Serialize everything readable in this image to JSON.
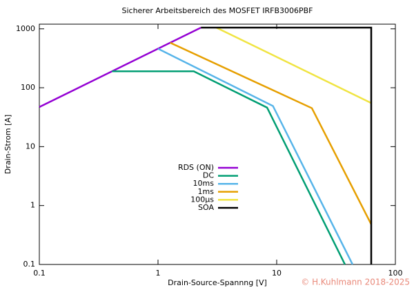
{
  "chart_data": {
    "type": "line",
    "title": "Sicherer Arbeitsbereich des MOSFET IRFB3006PBF",
    "x_label": "Drain-Source-Spannng [V]",
    "y_label": "Drain-Strom [A]",
    "annotation": "© H.Kuhlmann 2018-2025",
    "xscale": "log",
    "yscale": "log",
    "xlim": [
      0.1,
      100
    ],
    "ylim": [
      0.1,
      1200
    ],
    "xticks": [
      0.1,
      1,
      10,
      100
    ],
    "yticks": [
      0.1,
      1,
      10,
      100,
      1000
    ],
    "legend": "center",
    "series": [
      {
        "name": "RDS (ON)",
        "color": "#9400d3",
        "x": [
          0.1,
          2.3
        ],
        "values": [
          47,
          1050
        ]
      },
      {
        "name": "DC",
        "color": "#009e73",
        "x": [
          0.41,
          2.0,
          8.3,
          37.6
        ],
        "values": [
          190,
          190,
          46,
          0.1
        ]
      },
      {
        "name": "10ms",
        "color": "#56b4e9",
        "x": [
          1.0,
          9.3,
          43.6
        ],
        "values": [
          460,
          49,
          0.1
        ]
      },
      {
        "name": "1ms",
        "color": "#e69f00",
        "x": [
          1.27,
          19.8,
          62.6
        ],
        "values": [
          580,
          45,
          0.48
        ]
      },
      {
        "name": "100µs",
        "color": "#f0e442",
        "x": [
          3.1,
          62.6
        ],
        "values": [
          1050,
          55
        ]
      },
      {
        "name": "SOA",
        "color": "#000000",
        "x": [
          2.3,
          62.6,
          62.6
        ],
        "values": [
          1050,
          1050,
          0.1
        ]
      }
    ]
  }
}
